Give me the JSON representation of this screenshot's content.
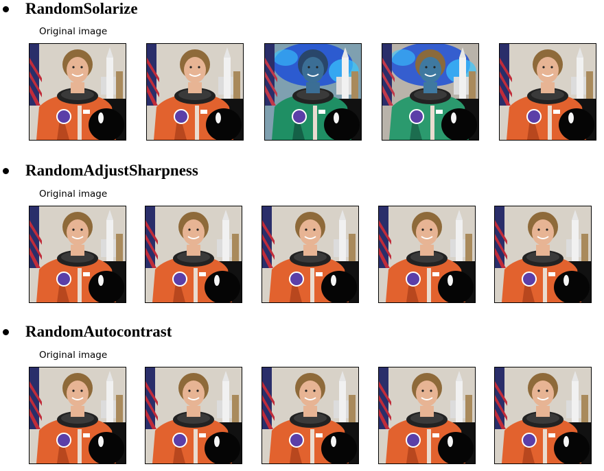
{
  "sections": [
    {
      "title": "RandomSolarize",
      "caption": "Original image",
      "images": [
        {
          "name": "original",
          "variant": "normal"
        },
        {
          "name": "transformed-1",
          "variant": "normal"
        },
        {
          "name": "transformed-2",
          "variant": "solarized"
        },
        {
          "name": "transformed-3",
          "variant": "solarized-partial"
        },
        {
          "name": "transformed-4",
          "variant": "normal"
        }
      ]
    },
    {
      "title": "RandomAdjustSharpness",
      "caption": "Original image",
      "images": [
        {
          "name": "original",
          "variant": "normal"
        },
        {
          "name": "transformed-1",
          "variant": "normal"
        },
        {
          "name": "transformed-2",
          "variant": "normal"
        },
        {
          "name": "transformed-3",
          "variant": "normal"
        },
        {
          "name": "transformed-4",
          "variant": "normal"
        }
      ]
    },
    {
      "title": "RandomAutocontrast",
      "caption": "Original image",
      "images": [
        {
          "name": "original",
          "variant": "normal"
        },
        {
          "name": "transformed-1",
          "variant": "normal"
        },
        {
          "name": "transformed-2",
          "variant": "normal"
        },
        {
          "name": "transformed-3",
          "variant": "normal"
        },
        {
          "name": "transformed-4",
          "variant": "normal"
        }
      ]
    }
  ]
}
